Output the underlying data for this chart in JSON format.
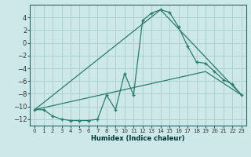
{
  "xlabel": "Humidex (Indice chaleur)",
  "background_color": "#cce8e8",
  "grid_color": "#aacccc",
  "line_color": "#2d7a6e",
  "xlim": [
    -0.5,
    23.5
  ],
  "ylim": [
    -13,
    6
  ],
  "yticks": [
    -12,
    -10,
    -8,
    -6,
    -4,
    -2,
    0,
    2,
    4
  ],
  "xticks": [
    0,
    1,
    2,
    3,
    4,
    5,
    6,
    7,
    8,
    9,
    10,
    11,
    12,
    13,
    14,
    15,
    16,
    17,
    18,
    19,
    20,
    21,
    22,
    23
  ],
  "series1_x": [
    0,
    1,
    2,
    3,
    4,
    5,
    6,
    7,
    8,
    9,
    10,
    11,
    12,
    13,
    14,
    15,
    16,
    17,
    18,
    19,
    20,
    21,
    22,
    23
  ],
  "series1_y": [
    -10.5,
    -10.5,
    -11.5,
    -12.0,
    -12.2,
    -12.2,
    -12.2,
    -12.0,
    -8.2,
    -10.5,
    -4.8,
    -8.2,
    3.5,
    4.7,
    5.2,
    4.8,
    2.5,
    -0.5,
    -3.0,
    -3.2,
    -4.5,
    -5.8,
    -6.5,
    -8.2
  ],
  "series2_x": [
    0,
    14,
    23
  ],
  "series2_y": [
    -10.5,
    5.2,
    -8.2
  ],
  "series3_x": [
    0,
    19,
    23
  ],
  "series3_y": [
    -10.5,
    -4.5,
    -8.2
  ]
}
